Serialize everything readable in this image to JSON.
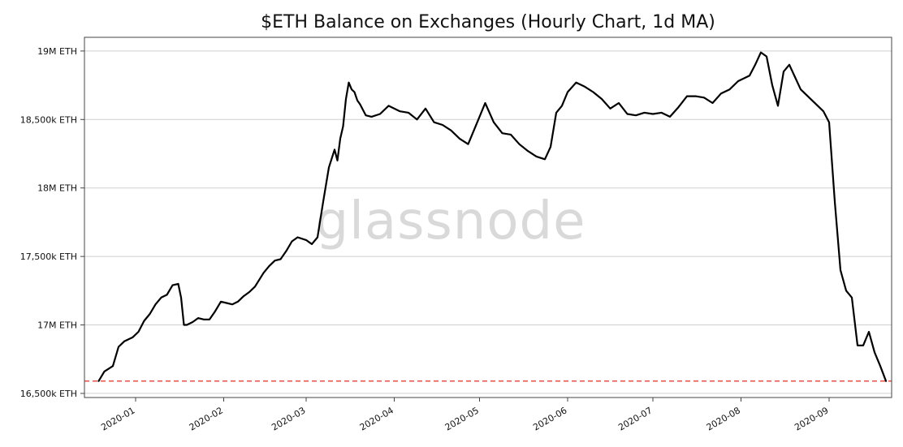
{
  "chart_data": {
    "type": "line",
    "title": "$ETH Balance on Exchanges (Hourly Chart, 1d MA)",
    "watermark": "glassnode",
    "xlabel": "",
    "ylabel": "",
    "x_ticks": [
      "2020-01",
      "2020-02",
      "2020-03",
      "2020-04",
      "2020-05",
      "2020-06",
      "2020-07",
      "2020-08",
      "2020-09"
    ],
    "y_ticks": [
      {
        "value": 16500,
        "label": "16,500k ETH"
      },
      {
        "value": 17000,
        "label": "17M ETH"
      },
      {
        "value": 17500,
        "label": "17,500k ETH"
      },
      {
        "value": 18000,
        "label": "18M ETH"
      },
      {
        "value": 18500,
        "label": "18,500k ETH"
      },
      {
        "value": 19000,
        "label": "19M ETH"
      }
    ],
    "xlim": [
      "2019-12-14",
      "2020-09-23"
    ],
    "ylim": [
      16470,
      19100
    ],
    "grid": "horizontal",
    "reference_line": {
      "value": 16590,
      "color": "#e0302a",
      "style": "dashed"
    },
    "line_color": "#000000",
    "series": [
      {
        "name": "",
        "x": [
          "2019-12-19",
          "2019-12-21",
          "2019-12-24",
          "2019-12-26",
          "2019-12-28",
          "2019-12-31",
          "2020-01-02",
          "2020-01-04",
          "2020-01-06",
          "2020-01-08",
          "2020-01-10",
          "2020-01-12",
          "2020-01-14",
          "2020-01-16",
          "2020-01-17",
          "2020-01-18",
          "2020-01-19",
          "2020-01-21",
          "2020-01-23",
          "2020-01-25",
          "2020-01-27",
          "2020-01-29",
          "2020-01-31",
          "2020-02-02",
          "2020-02-04",
          "2020-02-06",
          "2020-02-08",
          "2020-02-10",
          "2020-02-12",
          "2020-02-15",
          "2020-02-17",
          "2020-02-19",
          "2020-02-21",
          "2020-02-23",
          "2020-02-25",
          "2020-02-27",
          "2020-03-01",
          "2020-03-03",
          "2020-03-05",
          "2020-03-07",
          "2020-03-09",
          "2020-03-11",
          "2020-03-12",
          "2020-03-13",
          "2020-03-14",
          "2020-03-15",
          "2020-03-16",
          "2020-03-17",
          "2020-03-18",
          "2020-03-19",
          "2020-03-20",
          "2020-03-22",
          "2020-03-24",
          "2020-03-27",
          "2020-03-30",
          "2020-04-03",
          "2020-04-06",
          "2020-04-09",
          "2020-04-12",
          "2020-04-15",
          "2020-04-18",
          "2020-04-21",
          "2020-04-24",
          "2020-04-27",
          "2020-04-30",
          "2020-05-03",
          "2020-05-06",
          "2020-05-09",
          "2020-05-12",
          "2020-05-15",
          "2020-05-18",
          "2020-05-21",
          "2020-05-24",
          "2020-05-26",
          "2020-05-28",
          "2020-05-30",
          "2020-06-01",
          "2020-06-04",
          "2020-06-07",
          "2020-06-10",
          "2020-06-13",
          "2020-06-16",
          "2020-06-19",
          "2020-06-22",
          "2020-06-25",
          "2020-06-28",
          "2020-07-01",
          "2020-07-04",
          "2020-07-07",
          "2020-07-10",
          "2020-07-13",
          "2020-07-16",
          "2020-07-19",
          "2020-07-22",
          "2020-07-25",
          "2020-07-28",
          "2020-07-31",
          "2020-08-02",
          "2020-08-04",
          "2020-08-06",
          "2020-08-08",
          "2020-08-10",
          "2020-08-12",
          "2020-08-14",
          "2020-08-16",
          "2020-08-18",
          "2020-08-20",
          "2020-08-22",
          "2020-08-24",
          "2020-08-26",
          "2020-08-28",
          "2020-08-30",
          "2020-09-01",
          "2020-09-03",
          "2020-09-05",
          "2020-09-07",
          "2020-09-09",
          "2020-09-11",
          "2020-09-13",
          "2020-09-15",
          "2020-09-17",
          "2020-09-19",
          "2020-09-21"
        ],
        "values": [
          16590,
          16660,
          16700,
          16840,
          16880,
          16910,
          16950,
          17030,
          17080,
          17150,
          17200,
          17220,
          17290,
          17300,
          17200,
          17000,
          17000,
          17020,
          17050,
          17040,
          17040,
          17100,
          17170,
          17160,
          17150,
          17170,
          17210,
          17240,
          17280,
          17380,
          17430,
          17470,
          17480,
          17540,
          17610,
          17640,
          17620,
          17590,
          17640,
          17900,
          18150,
          18280,
          18200,
          18360,
          18450,
          18650,
          18770,
          18720,
          18700,
          18640,
          18610,
          18530,
          18520,
          18540,
          18600,
          18560,
          18550,
          18500,
          18580,
          18480,
          18460,
          18420,
          18360,
          18320,
          18470,
          18620,
          18480,
          18400,
          18390,
          18320,
          18270,
          18230,
          18210,
          18300,
          18550,
          18600,
          18700,
          18770,
          18740,
          18700,
          18650,
          18580,
          18620,
          18540,
          18530,
          18550,
          18540,
          18550,
          18520,
          18590,
          18670,
          18670,
          18660,
          18620,
          18690,
          18720,
          18780,
          18800,
          18820,
          18900,
          18990,
          18960,
          18750,
          18600,
          18850,
          18900,
          18810,
          18720,
          18680,
          18640,
          18600,
          18560,
          18480,
          17900,
          17400,
          17250,
          17200,
          16850,
          16850,
          16950,
          16800,
          16700,
          16590
        ]
      }
    ]
  }
}
